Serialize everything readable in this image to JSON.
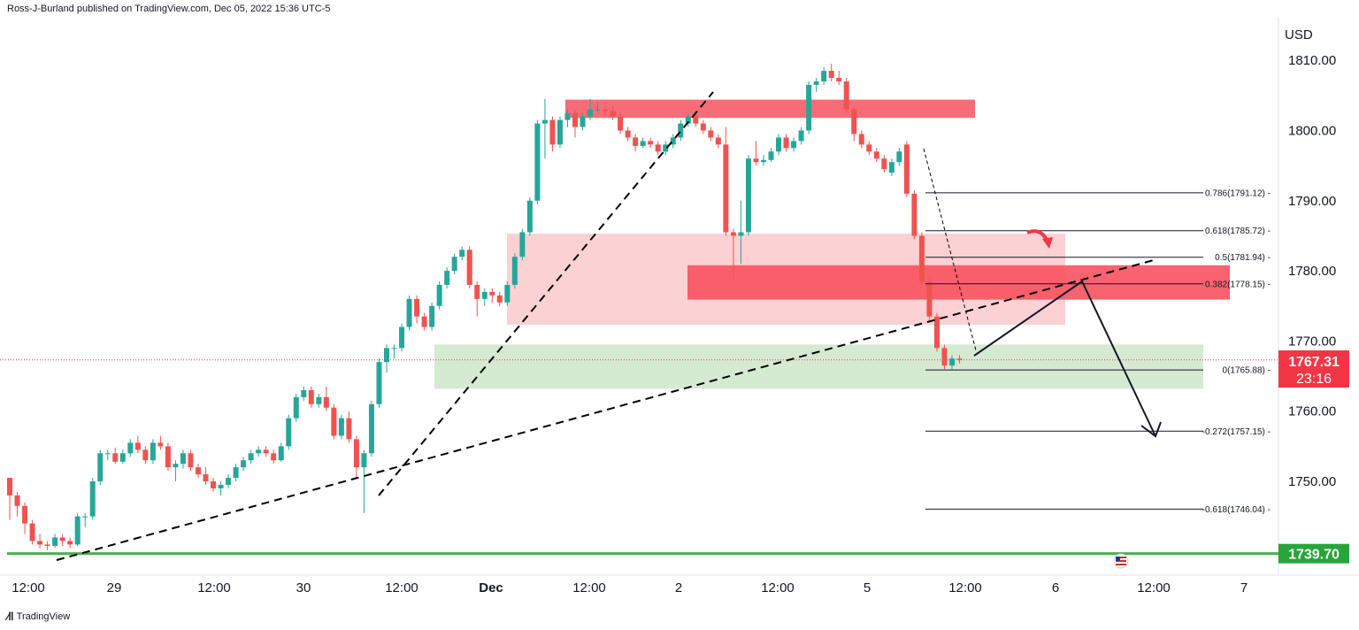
{
  "header": {
    "published": "Ross-J-Burland published on TradingView.com, Dec 05, 2022 15:36 UTC-5"
  },
  "footer": {
    "brand": "TradingView"
  },
  "colors": {
    "up": "#26a69a",
    "down": "#ef5350",
    "resistance_zone": "#f7525f",
    "light_zone": "#fbc9cd",
    "support_zone": "#cfe8cc",
    "support_line": "#4caf50",
    "price_badge": "#f23645",
    "support_badge": "#27a53a"
  },
  "price_badge": {
    "price": "1767.31",
    "countdown": "23:16"
  },
  "support_badge": {
    "price": "1739.70"
  },
  "chart_data": {
    "type": "candlestick",
    "symbol_currency": "USD",
    "y_axis": {
      "ticks": [
        "1810.00",
        "1800.00",
        "1790.00",
        "1780.00",
        "1770.00",
        "1760.00",
        "1750.00"
      ],
      "ylim": [
        1738,
        1815
      ]
    },
    "x_axis": {
      "ticks": [
        "12:00",
        "29",
        "12:00",
        "30",
        "12:00",
        "Dec",
        "12:00",
        "2",
        "12:00",
        "5",
        "12:00",
        "6",
        "12:00",
        "7"
      ]
    },
    "fib_levels": [
      {
        "label": "0.786(1791.12)",
        "value": 1791.12
      },
      {
        "label": "0.618(1785.72)",
        "value": 1785.72
      },
      {
        "label": "0.5(1781.94)",
        "value": 1781.94
      },
      {
        "label": "0.382(1778.15)",
        "value": 1778.15
      },
      {
        "label": "0(1765.88)",
        "value": 1765.88
      },
      {
        "label": "-0.272(1757.15)",
        "value": 1757.15
      },
      {
        "label": "-0.618(1746.04)",
        "value": 1746.04
      }
    ],
    "support_level": 1739.7,
    "last_price": 1767.31,
    "candles": [
      [
        1750.5,
        1750.5,
        1744.5,
        1748.0
      ],
      [
        1748.0,
        1748.5,
        1745.0,
        1746.5
      ],
      [
        1746.5,
        1747.0,
        1742.5,
        1744.0
      ],
      [
        1744.0,
        1744.5,
        1741.0,
        1741.5
      ],
      [
        1741.5,
        1742.5,
        1740.5,
        1741.0
      ],
      [
        1741.0,
        1741.5,
        1740.2,
        1740.8
      ],
      [
        1740.8,
        1742.5,
        1740.5,
        1742.0
      ],
      [
        1742.0,
        1742.5,
        1740.8,
        1741.5
      ],
      [
        1741.5,
        1742.0,
        1740.5,
        1741.0
      ],
      [
        1741.0,
        1745.5,
        1740.8,
        1745.0
      ],
      [
        1745.0,
        1745.5,
        1743.5,
        1745.0
      ],
      [
        1745.0,
        1750.5,
        1744.5,
        1750.0
      ],
      [
        1750.0,
        1754.5,
        1749.5,
        1754.0
      ],
      [
        1754.0,
        1754.5,
        1753.0,
        1754.0
      ],
      [
        1754.0,
        1754.8,
        1752.5,
        1752.8
      ],
      [
        1752.8,
        1754.5,
        1752.5,
        1754.0
      ],
      [
        1754.0,
        1756.0,
        1753.5,
        1755.5
      ],
      [
        1755.5,
        1756.5,
        1754.0,
        1754.5
      ],
      [
        1754.5,
        1755.0,
        1752.5,
        1753.0
      ],
      [
        1753.0,
        1756.0,
        1752.5,
        1755.5
      ],
      [
        1755.5,
        1756.5,
        1754.5,
        1755.0
      ],
      [
        1755.0,
        1755.5,
        1751.5,
        1752.0
      ],
      [
        1752.0,
        1753.0,
        1750.0,
        1752.5
      ],
      [
        1752.5,
        1754.5,
        1751.8,
        1754.0
      ],
      [
        1754.0,
        1754.5,
        1751.5,
        1752.0
      ],
      [
        1752.0,
        1752.5,
        1750.5,
        1751.0
      ],
      [
        1751.0,
        1752.0,
        1749.5,
        1750.0
      ],
      [
        1750.0,
        1750.5,
        1748.5,
        1749.0
      ],
      [
        1749.0,
        1750.0,
        1748.0,
        1749.5
      ],
      [
        1749.5,
        1751.0,
        1749.0,
        1750.5
      ],
      [
        1750.5,
        1752.5,
        1750.0,
        1752.0
      ],
      [
        1752.0,
        1753.5,
        1751.5,
        1753.0
      ],
      [
        1753.0,
        1754.5,
        1752.5,
        1754.0
      ],
      [
        1754.0,
        1755.0,
        1753.5,
        1754.5
      ],
      [
        1754.5,
        1755.0,
        1753.5,
        1754.0
      ],
      [
        1754.0,
        1754.5,
        1752.5,
        1753.0
      ],
      [
        1753.0,
        1755.5,
        1752.8,
        1755.0
      ],
      [
        1755.0,
        1759.5,
        1754.5,
        1759.0
      ],
      [
        1759.0,
        1762.5,
        1758.5,
        1762.0
      ],
      [
        1762.0,
        1763.5,
        1761.5,
        1763.0
      ],
      [
        1763.0,
        1763.5,
        1760.5,
        1761.0
      ],
      [
        1761.0,
        1762.5,
        1760.5,
        1762.0
      ],
      [
        1762.0,
        1763.5,
        1760.0,
        1760.5
      ],
      [
        1760.5,
        1761.0,
        1756.0,
        1756.5
      ],
      [
        1756.5,
        1759.5,
        1756.0,
        1759.0
      ],
      [
        1759.0,
        1760.0,
        1755.5,
        1756.0
      ],
      [
        1756.0,
        1756.5,
        1750.5,
        1752.0
      ],
      [
        1752.0,
        1754.5,
        1745.5,
        1754.0
      ],
      [
        1754.0,
        1761.5,
        1753.5,
        1761.0
      ],
      [
        1761.0,
        1767.5,
        1760.5,
        1767.0
      ],
      [
        1767.0,
        1769.5,
        1765.5,
        1769.0
      ],
      [
        1769.0,
        1769.5,
        1767.5,
        1769.0
      ],
      [
        1769.0,
        1772.5,
        1768.5,
        1772.0
      ],
      [
        1772.0,
        1776.5,
        1771.5,
        1776.0
      ],
      [
        1776.0,
        1776.5,
        1772.5,
        1773.5
      ],
      [
        1773.5,
        1774.0,
        1771.5,
        1772.0
      ],
      [
        1772.0,
        1775.5,
        1771.5,
        1775.0
      ],
      [
        1775.0,
        1778.5,
        1774.5,
        1778.0
      ],
      [
        1778.0,
        1780.5,
        1777.5,
        1780.0
      ],
      [
        1780.0,
        1782.5,
        1779.5,
        1782.0
      ],
      [
        1782.0,
        1783.5,
        1781.5,
        1783.0
      ],
      [
        1783.0,
        1783.5,
        1777.5,
        1778.0
      ],
      [
        1778.0,
        1778.5,
        1773.5,
        1776.0
      ],
      [
        1776.0,
        1777.5,
        1775.0,
        1777.0
      ],
      [
        1777.0,
        1777.5,
        1775.5,
        1776.5
      ],
      [
        1776.5,
        1777.0,
        1775.0,
        1775.5
      ],
      [
        1775.5,
        1778.5,
        1775.0,
        1778.0
      ],
      [
        1778.0,
        1782.5,
        1777.5,
        1782.0
      ],
      [
        1782.0,
        1786.0,
        1781.5,
        1785.5
      ],
      [
        1785.5,
        1790.5,
        1785.0,
        1790.0
      ],
      [
        1790.0,
        1801.5,
        1789.5,
        1801.0
      ],
      [
        1801.0,
        1804.5,
        1796.0,
        1801.5
      ],
      [
        1801.5,
        1802.0,
        1797.0,
        1798.0
      ],
      [
        1798.0,
        1802.0,
        1797.5,
        1801.5
      ],
      [
        1801.5,
        1803.0,
        1800.5,
        1802.5
      ],
      [
        1802.5,
        1803.0,
        1799.0,
        1800.5
      ],
      [
        1800.5,
        1802.5,
        1800.0,
        1802.0
      ],
      [
        1802.0,
        1804.5,
        1801.5,
        1803.0
      ],
      [
        1803.0,
        1804.0,
        1802.5,
        1803.0
      ],
      [
        1803.0,
        1803.5,
        1802.0,
        1802.8
      ],
      [
        1802.8,
        1803.5,
        1801.5,
        1802.0
      ],
      [
        1802.0,
        1802.5,
        1799.5,
        1800.0
      ],
      [
        1800.0,
        1800.5,
        1798.5,
        1799.0
      ],
      [
        1799.0,
        1799.5,
        1797.0,
        1797.8
      ],
      [
        1797.8,
        1799.0,
        1797.5,
        1798.5
      ],
      [
        1798.5,
        1799.0,
        1797.5,
        1798.0
      ],
      [
        1798.0,
        1798.5,
        1796.5,
        1797.0
      ],
      [
        1797.0,
        1798.5,
        1796.5,
        1798.0
      ],
      [
        1798.0,
        1799.5,
        1797.5,
        1799.0
      ],
      [
        1799.0,
        1801.5,
        1798.5,
        1801.0
      ],
      [
        1801.0,
        1802.5,
        1800.5,
        1802.0
      ],
      [
        1802.0,
        1802.5,
        1800.5,
        1801.0
      ],
      [
        1801.0,
        1801.5,
        1799.5,
        1800.0
      ],
      [
        1800.0,
        1800.5,
        1798.5,
        1799.0
      ],
      [
        1799.0,
        1799.5,
        1797.5,
        1798.0
      ],
      [
        1798.0,
        1800.5,
        1785.0,
        1785.5
      ],
      [
        1785.5,
        1786.0,
        1778.5,
        1785.0
      ],
      [
        1785.0,
        1790.0,
        1781.0,
        1785.5
      ],
      [
        1785.5,
        1796.5,
        1785.0,
        1796.0
      ],
      [
        1796.0,
        1798.5,
        1795.0,
        1795.5
      ],
      [
        1795.5,
        1796.5,
        1795.0,
        1795.8
      ],
      [
        1795.8,
        1797.5,
        1795.5,
        1797.0
      ],
      [
        1797.0,
        1799.5,
        1796.5,
        1799.0
      ],
      [
        1799.0,
        1799.5,
        1797.0,
        1797.5
      ],
      [
        1797.5,
        1799.0,
        1797.0,
        1798.5
      ],
      [
        1798.5,
        1800.5,
        1798.0,
        1800.0
      ],
      [
        1800.0,
        1807.0,
        1799.5,
        1806.5
      ],
      [
        1806.5,
        1807.5,
        1805.5,
        1807.0
      ],
      [
        1807.0,
        1809.0,
        1806.5,
        1808.5
      ],
      [
        1808.5,
        1809.5,
        1807.0,
        1807.5
      ],
      [
        1807.5,
        1808.5,
        1806.5,
        1807.0
      ],
      [
        1807.0,
        1807.5,
        1802.5,
        1803.0
      ],
      [
        1803.0,
        1803.5,
        1798.5,
        1799.5
      ],
      [
        1799.5,
        1800.0,
        1797.5,
        1798.0
      ],
      [
        1798.0,
        1798.5,
        1796.5,
        1797.0
      ],
      [
        1797.0,
        1797.5,
        1795.5,
        1796.0
      ],
      [
        1796.0,
        1796.5,
        1794.0,
        1794.5
      ],
      [
        1794.0,
        1796.0,
        1793.5,
        1795.5
      ],
      [
        1795.5,
        1797.5,
        1795.0,
        1797.0
      ],
      [
        1798.0,
        1798.5,
        1790.5,
        1791.0
      ],
      [
        1791.0,
        1791.5,
        1784.5,
        1785.0
      ],
      [
        1785.0,
        1785.5,
        1778.0,
        1778.5
      ],
      [
        1778.5,
        1779.0,
        1773.0,
        1773.5
      ],
      [
        1773.5,
        1774.0,
        1768.5,
        1769.0
      ],
      [
        1769.0,
        1769.5,
        1766.0,
        1766.5
      ],
      [
        1766.5,
        1768.0,
        1765.9,
        1767.5
      ],
      [
        1767.5,
        1768.0,
        1766.8,
        1767.31
      ]
    ]
  }
}
